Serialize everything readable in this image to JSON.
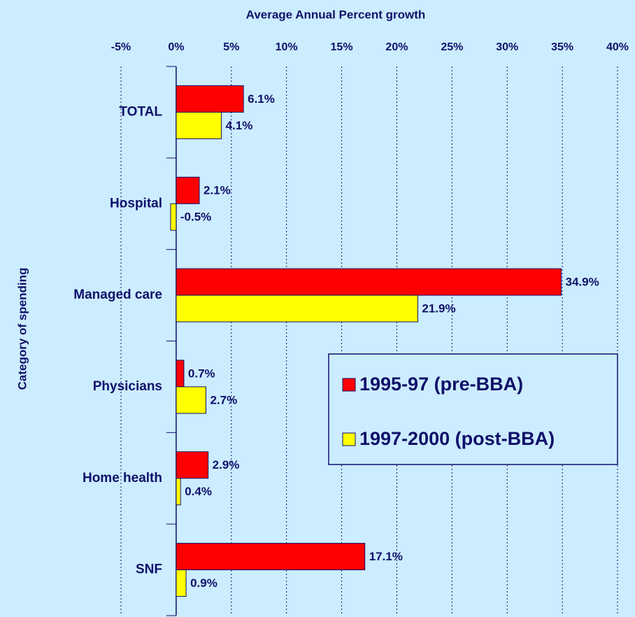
{
  "chart_data": {
    "type": "bar",
    "orientation": "horizontal",
    "title": "Average Annual Percent growth",
    "y_axis_label": "Category of spending",
    "categories": [
      "TOTAL",
      "Hospital",
      "Managed care",
      "Physicians",
      "Home health",
      "SNF"
    ],
    "series": [
      {
        "name": "1995-97 (pre-BBA)",
        "color": "#ff0000",
        "values": [
          6.1,
          2.1,
          34.9,
          0.7,
          2.9,
          17.1
        ],
        "value_labels": [
          "6.1%",
          "2.1%",
          "34.9%",
          "0.7%",
          "2.9%",
          "17.1%"
        ]
      },
      {
        "name": "1997-2000 (post-BBA)",
        "color": "#ffff00",
        "values": [
          4.1,
          -0.5,
          21.9,
          2.7,
          0.4,
          0.9
        ],
        "value_labels": [
          "4.1%",
          "-0.5%",
          "21.9%",
          "2.7%",
          "0.4%",
          "0.9%"
        ]
      }
    ],
    "xlim": [
      -5,
      40
    ],
    "xticks": [
      {
        "value": -5,
        "label": "-5%"
      },
      {
        "value": 0,
        "label": "0%"
      },
      {
        "value": 5,
        "label": "5%"
      },
      {
        "value": 10,
        "label": "10%"
      },
      {
        "value": 15,
        "label": "15%"
      },
      {
        "value": 20,
        "label": "20%"
      },
      {
        "value": 25,
        "label": "25%"
      },
      {
        "value": 30,
        "label": "30%"
      },
      {
        "value": 35,
        "label": "35%"
      },
      {
        "value": 40,
        "label": "40%"
      }
    ],
    "grid": true
  }
}
